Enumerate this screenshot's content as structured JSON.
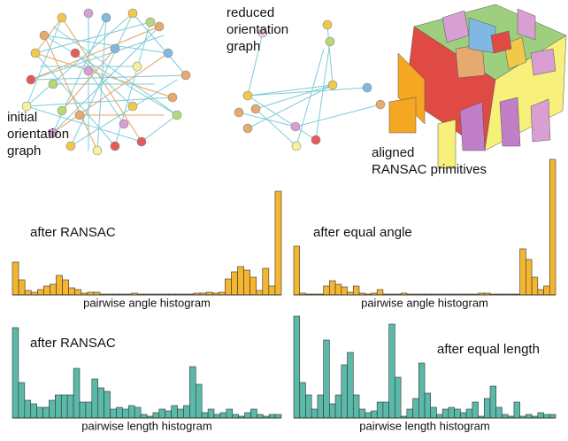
{
  "captions": {
    "initial": [
      "initial",
      "orientation",
      "graph"
    ],
    "reduced": [
      "reduced",
      "orientation",
      "graph"
    ],
    "aligned": [
      "aligned",
      "RANSAC primitives"
    ]
  },
  "chart_data": [
    {
      "type": "bar",
      "title": "after RANSAC",
      "x_label": "pairwise angle histogram",
      "color": "#f4b630",
      "values": [
        37,
        17,
        5,
        3,
        6,
        10,
        12,
        22,
        17,
        8,
        6,
        2,
        3,
        3,
        1,
        1,
        1,
        1,
        1,
        2,
        1,
        1,
        1,
        1,
        1,
        1,
        1,
        1,
        1,
        2,
        2,
        3,
        2,
        3,
        18,
        26,
        32,
        28,
        20,
        5,
        30,
        10,
        117
      ]
    },
    {
      "type": "bar",
      "title": "after equal angle",
      "x_label": "pairwise angle histogram",
      "color": "#f4b630",
      "values": [
        55,
        2,
        1,
        1,
        1,
        10,
        16,
        12,
        9,
        3,
        10,
        2,
        1,
        2,
        6,
        1,
        1,
        1,
        2,
        1,
        1,
        1,
        1,
        1,
        1,
        1,
        1,
        1,
        1,
        1,
        1,
        2,
        2,
        1,
        1,
        1,
        1,
        1,
        52,
        40,
        20,
        6,
        10,
        153
      ]
    },
    {
      "type": "bar",
      "title": "after RANSAC",
      "x_label": "pairwise length histogram",
      "color": "#5bb9a9",
      "values": [
        102,
        40,
        20,
        16,
        12,
        12,
        20,
        26,
        26,
        26,
        56,
        18,
        18,
        44,
        34,
        30,
        10,
        12,
        10,
        14,
        12,
        4,
        2,
        6,
        10,
        8,
        14,
        10,
        14,
        58,
        38,
        6,
        10,
        4,
        6,
        10,
        4,
        2,
        6,
        10,
        4,
        2,
        4,
        4
      ]
    },
    {
      "type": "bar",
      "title": "after equal length",
      "x_label": "pairwise length histogram",
      "color": "#5bb9a9",
      "values": [
        115,
        40,
        26,
        10,
        26,
        88,
        16,
        26,
        60,
        74,
        26,
        10,
        6,
        8,
        18,
        18,
        106,
        46,
        2,
        10,
        22,
        62,
        28,
        12,
        4,
        10,
        12,
        10,
        6,
        10,
        18,
        2,
        22,
        36,
        12,
        4,
        2,
        18,
        2,
        4,
        2,
        6,
        4,
        4
      ]
    }
  ]
}
